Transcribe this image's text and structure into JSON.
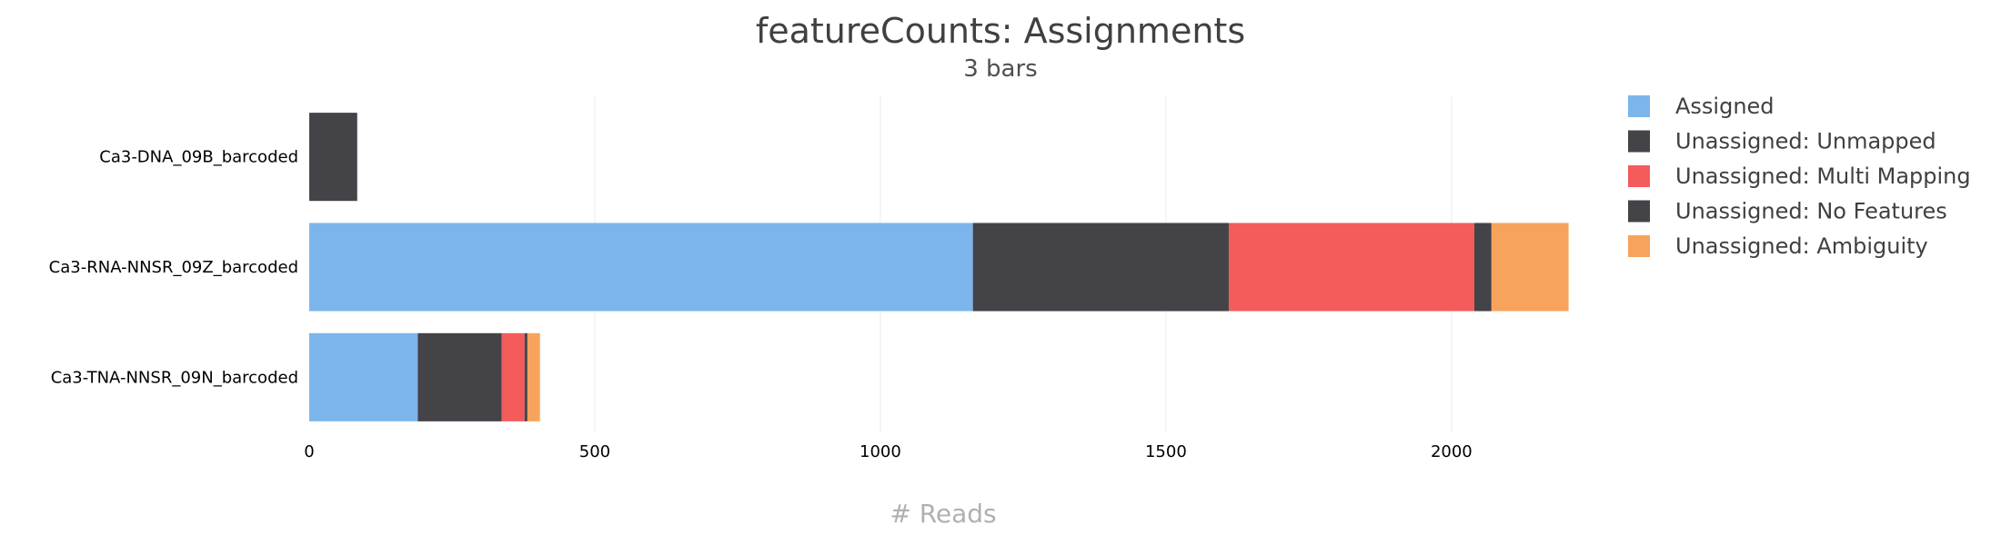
{
  "chart_data": {
    "type": "bar",
    "orientation": "horizontal",
    "stacked": true,
    "title": "featureCounts: Assignments",
    "subtitle": "3 bars",
    "xlabel": "# Reads",
    "ylabel": "",
    "xlim": [
      0,
      2220
    ],
    "xticks": [
      0,
      500,
      1000,
      1500,
      2000
    ],
    "grid": true,
    "legend_position": "right",
    "categories": [
      "Ca3-DNA_09B_barcoded",
      "Ca3-RNA-NNSR_09Z_barcoded",
      "Ca3-TNA-NNSR_09N_barcoded"
    ],
    "series": [
      {
        "name": "Assigned",
        "color": "#7cb5ec",
        "values": [
          0,
          1162,
          190
        ]
      },
      {
        "name": "Unassigned: Unmapped",
        "color": "#434348",
        "values": [
          84,
          448,
          147
        ]
      },
      {
        "name": "Unassigned: Multi Mapping",
        "color": "#f45b5b",
        "values": [
          0,
          430,
          40
        ]
      },
      {
        "name": "Unassigned: No Features",
        "color": "#434348",
        "values": [
          0,
          30,
          5
        ]
      },
      {
        "name": "Unassigned: Ambiguity",
        "color": "#f7a35c",
        "values": [
          0,
          135,
          22
        ]
      }
    ]
  }
}
